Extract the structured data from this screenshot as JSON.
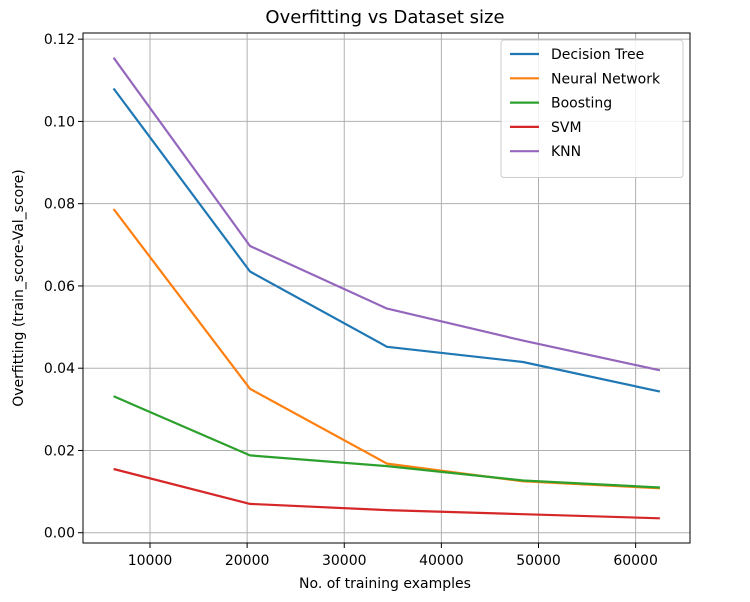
{
  "chart_data": {
    "type": "line",
    "title": "Overfitting vs Dataset size",
    "xlabel": "No. of training examples",
    "ylabel": "Overfitting (train_score-Val_score)",
    "x": [
      6250,
      20300,
      34400,
      48400,
      62500
    ],
    "xlim": [
      3100,
      65600
    ],
    "ylim": [
      -0.0025,
      0.1215
    ],
    "xticks": [
      10000,
      20000,
      30000,
      40000,
      50000,
      60000
    ],
    "xtick_labels": [
      "10000",
      "20000",
      "30000",
      "40000",
      "50000",
      "60000"
    ],
    "yticks": [
      0,
      0.02,
      0.04,
      0.06,
      0.08,
      0.1,
      0.12
    ],
    "ytick_labels": [
      "0.00",
      "0.02",
      "0.04",
      "0.06",
      "0.08",
      "0.10",
      "0.12"
    ],
    "grid": true,
    "legend_position": "top-right",
    "series": [
      {
        "name": "Decision Tree",
        "color": "#1f77b4",
        "values": [
          0.108,
          0.0635,
          0.0452,
          0.0415,
          0.0343
        ]
      },
      {
        "name": "Neural Network",
        "color": "#ff7f0e",
        "values": [
          0.0787,
          0.035,
          0.0168,
          0.0125,
          0.0108
        ]
      },
      {
        "name": "Boosting",
        "color": "#2ca02c",
        "values": [
          0.0332,
          0.0188,
          0.0162,
          0.0127,
          0.011
        ]
      },
      {
        "name": "SVM",
        "color": "#d62728",
        "values": [
          0.0155,
          0.007,
          0.0055,
          0.0045,
          0.0035
        ]
      },
      {
        "name": "KNN",
        "color": "#9467bd",
        "values": [
          0.1155,
          0.0697,
          0.0545,
          0.0467,
          0.0395
        ]
      }
    ]
  }
}
